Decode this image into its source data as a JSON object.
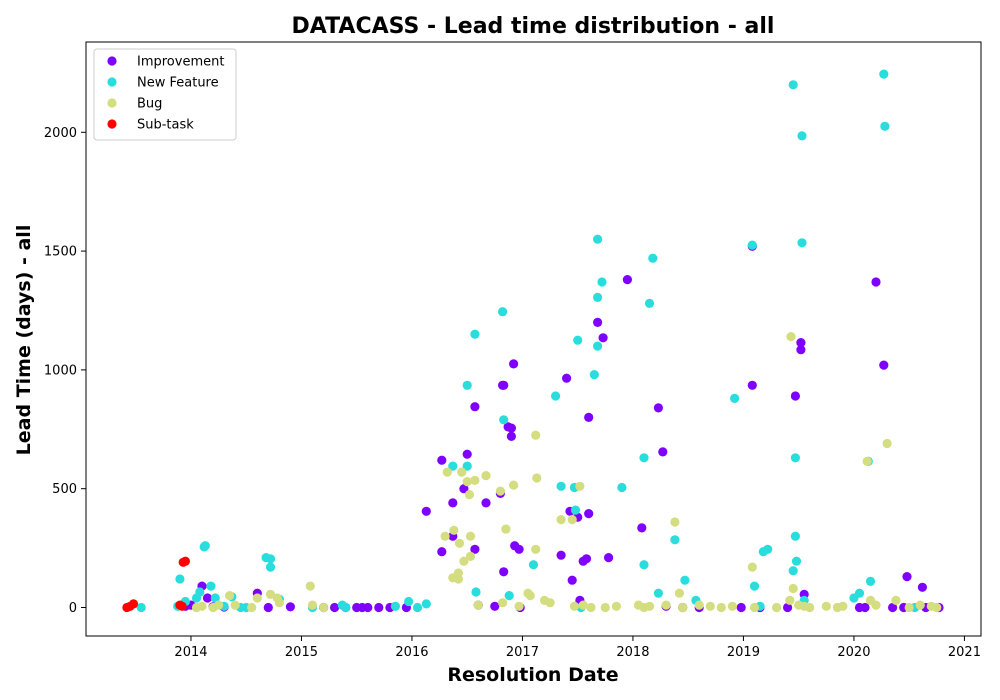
{
  "chart_data": {
    "type": "scatter",
    "title": "DATACASS - Lead time distribution - all",
    "xlabel": "Resolution Date",
    "ylabel": "Lead Time (days) - all",
    "xlim": [
      2013.05,
      2021.15
    ],
    "ylim": [
      -120,
      2380
    ],
    "x_ticks": [
      2014,
      2015,
      2016,
      2017,
      2018,
      2019,
      2020,
      2021
    ],
    "x_tick_labels": [
      "2014",
      "2015",
      "2016",
      "2017",
      "2018",
      "2019",
      "2020",
      "2021"
    ],
    "y_ticks": [
      0,
      500,
      1000,
      1500,
      2000
    ],
    "y_tick_labels": [
      "0",
      "500",
      "1000",
      "1500",
      "2000"
    ],
    "grid": false,
    "legend_position": "top-left",
    "series": [
      {
        "name": "Improvement",
        "color": "#8000ff",
        "points": [
          [
            2013.95,
            5
          ],
          [
            2014.0,
            10
          ],
          [
            2014.1,
            90
          ],
          [
            2014.15,
            40
          ],
          [
            2014.2,
            3
          ],
          [
            2014.3,
            2
          ],
          [
            2014.6,
            60
          ],
          [
            2014.7,
            0
          ],
          [
            2014.9,
            3
          ],
          [
            2015.2,
            0
          ],
          [
            2015.3,
            0
          ],
          [
            2015.4,
            0
          ],
          [
            2015.5,
            0
          ],
          [
            2015.55,
            0
          ],
          [
            2015.6,
            0
          ],
          [
            2015.7,
            0
          ],
          [
            2015.8,
            0
          ],
          [
            2015.95,
            0
          ],
          [
            2016.13,
            405
          ],
          [
            2016.27,
            620
          ],
          [
            2016.27,
            235
          ],
          [
            2016.37,
            440
          ],
          [
            2016.37,
            300
          ],
          [
            2016.47,
            500
          ],
          [
            2016.5,
            645
          ],
          [
            2016.57,
            845
          ],
          [
            2016.57,
            245
          ],
          [
            2016.6,
            10
          ],
          [
            2016.67,
            440
          ],
          [
            2016.75,
            5
          ],
          [
            2016.8,
            480
          ],
          [
            2016.82,
            935
          ],
          [
            2016.83,
            935
          ],
          [
            2016.83,
            150
          ],
          [
            2016.87,
            760
          ],
          [
            2016.9,
            755
          ],
          [
            2016.9,
            720
          ],
          [
            2016.92,
            1025
          ],
          [
            2016.93,
            260
          ],
          [
            2016.97,
            245
          ],
          [
            2016.98,
            0
          ],
          [
            2017.35,
            220
          ],
          [
            2017.4,
            965
          ],
          [
            2017.43,
            405
          ],
          [
            2017.45,
            115
          ],
          [
            2017.5,
            380
          ],
          [
            2017.52,
            30
          ],
          [
            2017.55,
            195
          ],
          [
            2017.58,
            205
          ],
          [
            2017.6,
            395
          ],
          [
            2017.6,
            800
          ],
          [
            2017.68,
            1200
          ],
          [
            2017.73,
            1135
          ],
          [
            2017.78,
            210
          ],
          [
            2017.95,
            1380
          ],
          [
            2018.08,
            335
          ],
          [
            2018.23,
            840
          ],
          [
            2018.27,
            655
          ],
          [
            2018.3,
            5
          ],
          [
            2018.45,
            0
          ],
          [
            2018.6,
            0
          ],
          [
            2018.98,
            0
          ],
          [
            2019.08,
            1520
          ],
          [
            2019.08,
            935
          ],
          [
            2019.15,
            0
          ],
          [
            2019.4,
            0
          ],
          [
            2019.47,
            890
          ],
          [
            2019.52,
            1115
          ],
          [
            2019.52,
            1085
          ],
          [
            2019.55,
            55
          ],
          [
            2020.05,
            0
          ],
          [
            2020.1,
            0
          ],
          [
            2020.2,
            1370
          ],
          [
            2020.27,
            1020
          ],
          [
            2020.35,
            0
          ],
          [
            2020.45,
            0
          ],
          [
            2020.48,
            130
          ],
          [
            2020.62,
            85
          ],
          [
            2020.65,
            0
          ],
          [
            2020.77,
            0
          ]
        ]
      },
      {
        "name": "New Feature",
        "color": "#2adddd",
        "points": [
          [
            2013.55,
            0
          ],
          [
            2013.88,
            5
          ],
          [
            2013.9,
            120
          ],
          [
            2013.95,
            25
          ],
          [
            2014.05,
            40
          ],
          [
            2014.08,
            65
          ],
          [
            2014.12,
            255
          ],
          [
            2014.13,
            260
          ],
          [
            2014.18,
            90
          ],
          [
            2014.22,
            40
          ],
          [
            2014.3,
            5
          ],
          [
            2014.37,
            45
          ],
          [
            2014.45,
            0
          ],
          [
            2014.5,
            0
          ],
          [
            2014.68,
            210
          ],
          [
            2014.72,
            205
          ],
          [
            2014.72,
            170
          ],
          [
            2014.8,
            35
          ],
          [
            2015.1,
            0
          ],
          [
            2015.37,
            10
          ],
          [
            2015.4,
            0
          ],
          [
            2015.85,
            5
          ],
          [
            2015.97,
            25
          ],
          [
            2016.05,
            0
          ],
          [
            2016.13,
            15
          ],
          [
            2016.37,
            595
          ],
          [
            2016.5,
            595
          ],
          [
            2016.5,
            935
          ],
          [
            2016.57,
            1150
          ],
          [
            2016.58,
            65
          ],
          [
            2016.82,
            1245
          ],
          [
            2016.83,
            790
          ],
          [
            2016.88,
            50
          ],
          [
            2017.1,
            180
          ],
          [
            2017.3,
            890
          ],
          [
            2017.35,
            510
          ],
          [
            2017.47,
            505
          ],
          [
            2017.48,
            410
          ],
          [
            2017.5,
            1125
          ],
          [
            2017.53,
            0
          ],
          [
            2017.65,
            980
          ],
          [
            2017.68,
            1100
          ],
          [
            2017.68,
            1305
          ],
          [
            2017.68,
            1550
          ],
          [
            2017.72,
            1370
          ],
          [
            2017.9,
            505
          ],
          [
            2018.1,
            630
          ],
          [
            2018.1,
            180
          ],
          [
            2018.15,
            1280
          ],
          [
            2018.18,
            1470
          ],
          [
            2018.23,
            60
          ],
          [
            2018.38,
            285
          ],
          [
            2018.47,
            115
          ],
          [
            2018.57,
            30
          ],
          [
            2018.92,
            880
          ],
          [
            2019.08,
            1525
          ],
          [
            2019.1,
            90
          ],
          [
            2019.15,
            5
          ],
          [
            2019.18,
            235
          ],
          [
            2019.22,
            245
          ],
          [
            2019.45,
            2200
          ],
          [
            2019.45,
            155
          ],
          [
            2019.47,
            300
          ],
          [
            2019.47,
            630
          ],
          [
            2019.48,
            195
          ],
          [
            2019.53,
            1985
          ],
          [
            2019.53,
            1535
          ],
          [
            2019.55,
            30
          ],
          [
            2020.0,
            40
          ],
          [
            2020.05,
            60
          ],
          [
            2020.13,
            615
          ],
          [
            2020.15,
            110
          ],
          [
            2020.27,
            2245
          ],
          [
            2020.28,
            2025
          ],
          [
            2020.55,
            0
          ]
        ]
      },
      {
        "name": "Bug",
        "color": "#d4dd80",
        "points": [
          [
            2014.05,
            0
          ],
          [
            2014.1,
            5
          ],
          [
            2014.2,
            0
          ],
          [
            2014.25,
            10
          ],
          [
            2014.35,
            50
          ],
          [
            2014.4,
            10
          ],
          [
            2014.55,
            0
          ],
          [
            2014.6,
            40
          ],
          [
            2014.72,
            55
          ],
          [
            2014.78,
            40
          ],
          [
            2014.8,
            20
          ],
          [
            2015.08,
            90
          ],
          [
            2015.1,
            10
          ],
          [
            2015.2,
            0
          ],
          [
            2016.3,
            300
          ],
          [
            2016.32,
            570
          ],
          [
            2016.37,
            125
          ],
          [
            2016.38,
            325
          ],
          [
            2016.42,
            120
          ],
          [
            2016.42,
            145
          ],
          [
            2016.43,
            270
          ],
          [
            2016.45,
            570
          ],
          [
            2016.47,
            195
          ],
          [
            2016.5,
            530
          ],
          [
            2016.52,
            475
          ],
          [
            2016.53,
            300
          ],
          [
            2016.53,
            215
          ],
          [
            2016.57,
            535
          ],
          [
            2016.6,
            10
          ],
          [
            2016.67,
            555
          ],
          [
            2016.8,
            490
          ],
          [
            2016.82,
            20
          ],
          [
            2016.85,
            330
          ],
          [
            2016.92,
            515
          ],
          [
            2016.97,
            5
          ],
          [
            2017.05,
            60
          ],
          [
            2017.07,
            50
          ],
          [
            2017.12,
            245
          ],
          [
            2017.12,
            725
          ],
          [
            2017.13,
            545
          ],
          [
            2017.2,
            30
          ],
          [
            2017.25,
            20
          ],
          [
            2017.35,
            370
          ],
          [
            2017.45,
            370
          ],
          [
            2017.47,
            5
          ],
          [
            2017.52,
            510
          ],
          [
            2017.55,
            10
          ],
          [
            2017.62,
            0
          ],
          [
            2017.75,
            0
          ],
          [
            2017.85,
            5
          ],
          [
            2018.05,
            10
          ],
          [
            2018.1,
            0
          ],
          [
            2018.15,
            5
          ],
          [
            2018.3,
            10
          ],
          [
            2018.38,
            360
          ],
          [
            2018.42,
            60
          ],
          [
            2018.45,
            0
          ],
          [
            2018.6,
            10
          ],
          [
            2018.7,
            5
          ],
          [
            2018.8,
            0
          ],
          [
            2018.9,
            5
          ],
          [
            2019.08,
            170
          ],
          [
            2019.1,
            0
          ],
          [
            2019.3,
            0
          ],
          [
            2019.42,
            30
          ],
          [
            2019.43,
            1140
          ],
          [
            2019.45,
            80
          ],
          [
            2019.5,
            10
          ],
          [
            2019.55,
            5
          ],
          [
            2019.6,
            0
          ],
          [
            2019.75,
            5
          ],
          [
            2019.85,
            0
          ],
          [
            2019.9,
            5
          ],
          [
            2020.12,
            615
          ],
          [
            2020.15,
            30
          ],
          [
            2020.2,
            10
          ],
          [
            2020.3,
            690
          ],
          [
            2020.38,
            30
          ],
          [
            2020.5,
            0
          ],
          [
            2020.6,
            10
          ],
          [
            2020.7,
            5
          ],
          [
            2020.75,
            0
          ]
        ]
      },
      {
        "name": "Sub-task",
        "color": "#ff0000",
        "points": [
          [
            2013.42,
            0
          ],
          [
            2013.45,
            5
          ],
          [
            2013.48,
            15
          ],
          [
            2013.9,
            10
          ],
          [
            2013.92,
            5
          ],
          [
            2013.93,
            190
          ],
          [
            2013.95,
            195
          ]
        ]
      }
    ]
  }
}
